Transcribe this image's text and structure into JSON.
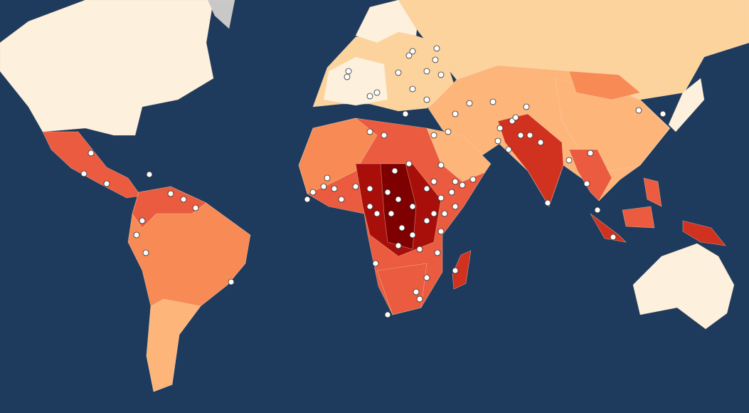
{
  "map": {
    "ocean_color": "#1e3a5c",
    "no_data_color": "#c8c8c8",
    "marker_color": "#ffffff",
    "choropleth_scale": [
      "#fdf0dc",
      "#fcd39c",
      "#fdb57a",
      "#f88b55",
      "#ea5b3f",
      "#d0321f",
      "#a80f0a",
      "#7f0000"
    ]
  }
}
